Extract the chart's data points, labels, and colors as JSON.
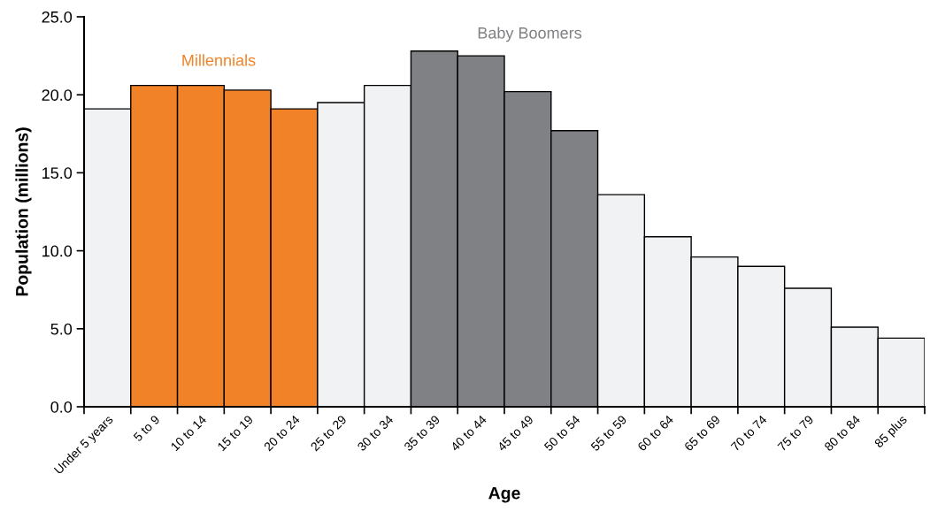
{
  "chart_data": {
    "type": "bar",
    "xlabel": "Age",
    "ylabel": "Population (millions)",
    "categories": [
      "Under 5 years",
      "5 to 9",
      "10 to 14",
      "15 to 19",
      "20 to 24",
      "25 to 29",
      "30 to 34",
      "35 to 39",
      "40 to 44",
      "45 to 49",
      "50 to 54",
      "55 to 59",
      "60 to 64",
      "65 to 69",
      "70 to 74",
      "75 to 79",
      "80 to 84",
      "85 plus"
    ],
    "values": [
      19.1,
      20.6,
      20.6,
      20.3,
      19.1,
      19.5,
      20.6,
      22.8,
      22.5,
      20.2,
      17.7,
      13.6,
      10.9,
      9.6,
      9.0,
      7.6,
      5.1,
      4.4
    ],
    "colors": [
      "#f1f2f4",
      "#f28227",
      "#f28227",
      "#f28227",
      "#f28227",
      "#f1f2f4",
      "#f1f2f4",
      "#808184",
      "#808184",
      "#808184",
      "#808184",
      "#f1f2f4",
      "#f1f2f4",
      "#f1f2f4",
      "#f1f2f4",
      "#f1f2f4",
      "#f1f2f4",
      "#f1f2f4"
    ],
    "ylim": [
      0,
      25
    ],
    "yticks": [
      {
        "value": 0,
        "label": "0.0"
      },
      {
        "value": 5,
        "label": "5.0"
      },
      {
        "value": 10,
        "label": "10.0"
      },
      {
        "value": 15,
        "label": "15.0"
      },
      {
        "value": 20,
        "label": "20.0"
      },
      {
        "value": 25,
        "label": "25.0"
      }
    ],
    "annotations": [
      "Millennials",
      "Baby Boomers"
    ],
    "grid": false,
    "legend": false
  }
}
